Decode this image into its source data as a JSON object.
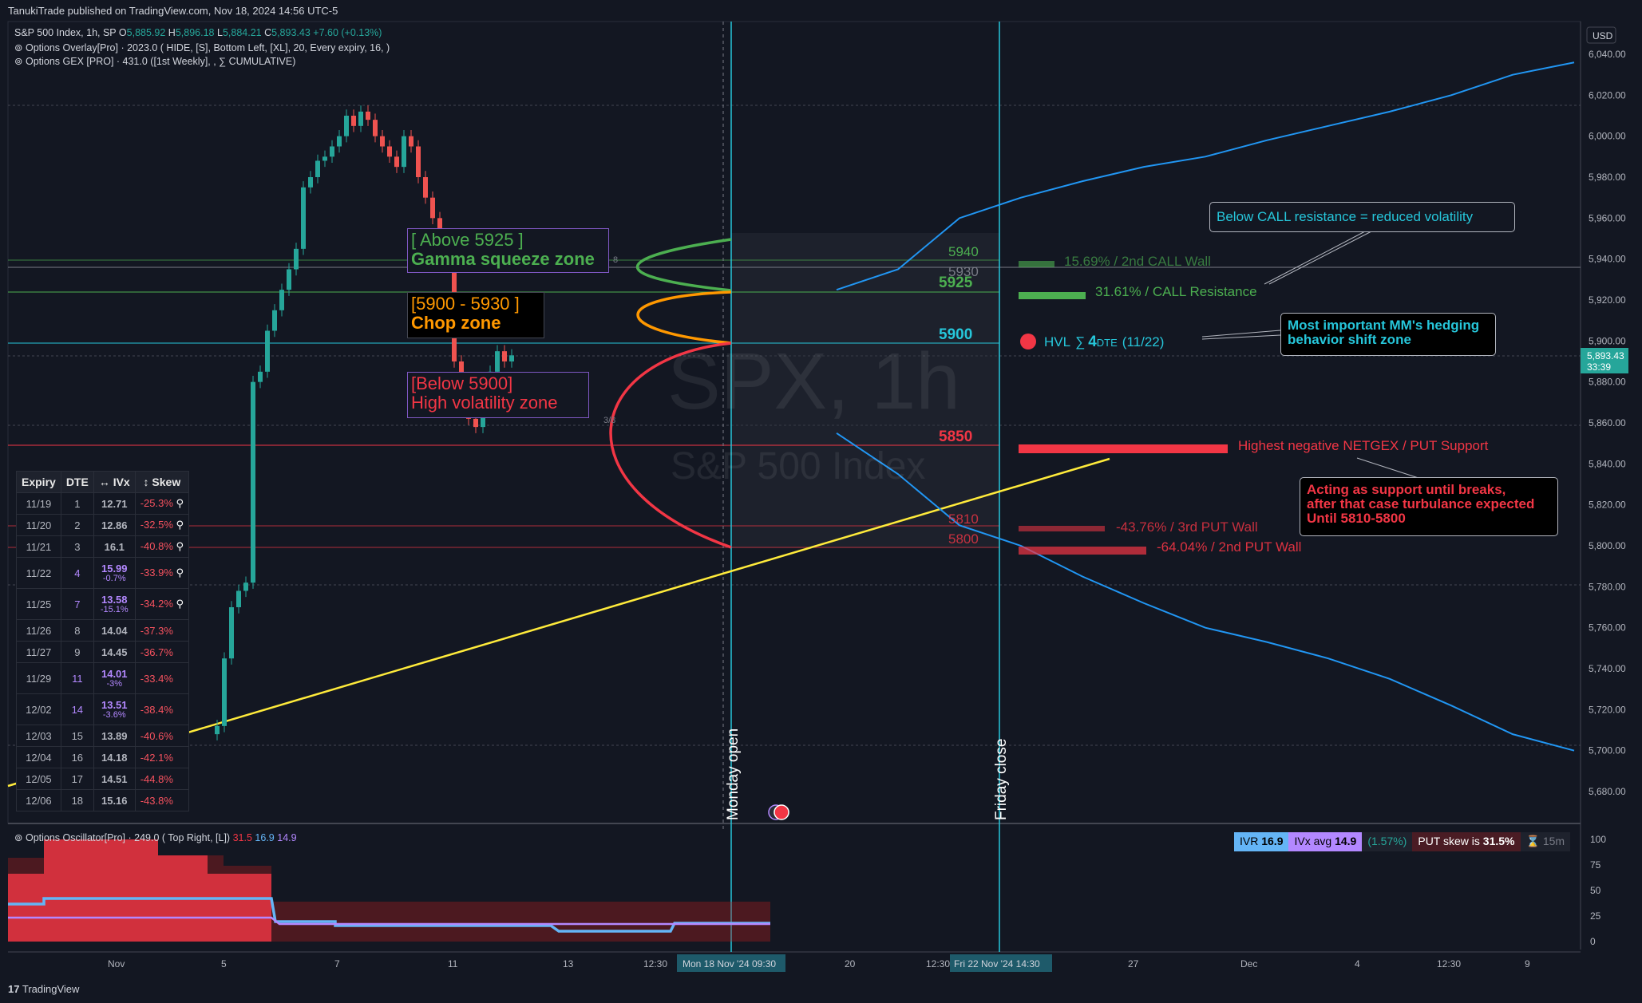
{
  "header": {
    "published": "TanukiTrade published on TradingView.com, Nov 18, 2024 14:56 UTC-5"
  },
  "symbol_line": {
    "name": "S&P 500 Index, 1h, SP",
    "o_label": "O",
    "o": "5,885.92",
    "h_label": "H",
    "h": "5,896.18",
    "l_label": "L",
    "l": "5,884.21",
    "c_label": "C",
    "c": "5,893.43",
    "chg": "+7.60 (+0.13%)"
  },
  "indicators": [
    "Options Overlay[Pro] · 2023.0 ( HIDE, [S], Bottom Left, [XL], 20, Every expiry, 16, )",
    "Options GEX [PRO] · 431.0 ([1st Weekly], , ∑ CUMULATIVE)"
  ],
  "oscillator_legend": {
    "name": "Options Oscillator[Pro] · 249.0 ( Top Right, [L])",
    "v1": "31.5",
    "v2": "16.9",
    "v3": "14.9"
  },
  "zones": {
    "above_title": "[ Above 5925 ]",
    "above_sub": "Gamma squeeze zone",
    "chop_title": "[5900 - 5930 ]",
    "chop_sub": "Chop zone",
    "below_title": "[Below 5900]",
    "below_sub": "High volatility zone"
  },
  "levels": {
    "l5940": "5940",
    "l5930": "5930",
    "l5925": "5925",
    "l5900": "5900",
    "l5850": "5850",
    "l5810": "5810",
    "l5800": "5800"
  },
  "gex_labels": {
    "call_wall_2": "15.69% / 2nd CALL Wall",
    "call_res": "31.61% / CALL Resistance",
    "hvl": "HVL",
    "hvl_dte": "4",
    "hvl_dte_unit": "DTE",
    "hvl_date": "(11/22)",
    "netgex": "Highest negative NETGEX / PUT Support",
    "put_wall_3": "-43.76% / 3rd PUT Wall",
    "put_wall_2": "-64.04% / 2nd PUT Wall"
  },
  "callouts": {
    "call_note": "Below CALL resistance = reduced volatility",
    "mm_note_1": "Most important MM's hedging",
    "mm_note_2": "behavior shift zone",
    "support_1": "Acting as support until breaks,",
    "support_2": "after that case turbulance expected",
    "support_3": "Until 5810-5800"
  },
  "watermark": {
    "symbol_a": "SPX",
    "symbol_b": ", 1h",
    "name": "S&P 500 Index"
  },
  "markers": {
    "monday": "Monday open",
    "friday": "Friday close",
    "small_8": "8",
    "small_38": "3/8"
  },
  "price_scale": {
    "currency": "USD",
    "ticks": [
      "6,040.00",
      "6,020.00",
      "6,000.00",
      "5,980.00",
      "5,960.00",
      "5,940.00",
      "5,920.00",
      "5,900.00",
      "5,880.00",
      "5,860.00",
      "5,840.00",
      "5,820.00",
      "5,800.00",
      "5,780.00",
      "5,760.00",
      "5,740.00",
      "5,720.00",
      "5,700.00",
      "5,680.00"
    ],
    "last_price": "5,893.43",
    "countdown": "33:39"
  },
  "osc_scale": [
    "100",
    "75",
    "50",
    "25",
    "0"
  ],
  "time_axis": {
    "labels": [
      "Nov",
      "5",
      "7",
      "11",
      "13",
      "12:30",
      "20",
      "12:30",
      "27",
      "Dec",
      "4",
      "12:30",
      "9"
    ],
    "cursor_1": "Mon 18 Nov '24   09:30",
    "cursor_2": "Fri 22 Nov '24   14:30"
  },
  "iv_table": {
    "headers": [
      "Expiry",
      "DTE",
      "↔ IVx",
      "↕ Skew"
    ],
    "rows": [
      {
        "expiry": "11/19",
        "dte": "1",
        "ivx": "12.71",
        "chg": "",
        "skew": "-25.3%"
      },
      {
        "expiry": "11/20",
        "dte": "2",
        "ivx": "12.86",
        "chg": "",
        "skew": "-32.5%"
      },
      {
        "expiry": "11/21",
        "dte": "3",
        "ivx": "16.1",
        "chg": "",
        "skew": "-40.8%"
      },
      {
        "expiry": "11/22",
        "dte": "4",
        "ivx": "15.99",
        "chg": "-0.7%",
        "skew": "-33.9%"
      },
      {
        "expiry": "11/25",
        "dte": "7",
        "ivx": "13.58",
        "chg": "-15.1%",
        "skew": "-34.2%"
      },
      {
        "expiry": "11/26",
        "dte": "8",
        "ivx": "14.04",
        "chg": "",
        "skew": "-37.3%"
      },
      {
        "expiry": "11/27",
        "dte": "9",
        "ivx": "14.45",
        "chg": "",
        "skew": "-36.7%"
      },
      {
        "expiry": "11/29",
        "dte": "11",
        "ivx": "14.01",
        "chg": "-3%",
        "skew": "-33.4%"
      },
      {
        "expiry": "12/02",
        "dte": "14",
        "ivx": "13.51",
        "chg": "-3.6%",
        "skew": "-38.4%"
      },
      {
        "expiry": "12/03",
        "dte": "15",
        "ivx": "13.89",
        "chg": "",
        "skew": "-40.6%"
      },
      {
        "expiry": "12/04",
        "dte": "16",
        "ivx": "14.18",
        "chg": "",
        "skew": "-42.1%"
      },
      {
        "expiry": "12/05",
        "dte": "17",
        "ivx": "14.51",
        "chg": "",
        "skew": "-44.8%"
      },
      {
        "expiry": "12/06",
        "dte": "18",
        "ivx": "15.16",
        "chg": "",
        "skew": "-43.8%"
      }
    ]
  },
  "iv_bar": {
    "ivr_label": "IVR",
    "ivr": "16.9",
    "ivx_avg_label": "IVx avg",
    "ivx_avg": "14.9",
    "chg": "(1.57%)",
    "skew_label": "PUT skew is",
    "skew": "31.5%",
    "tf": "15m"
  },
  "footer": {
    "brand": "TradingView"
  },
  "colors": {
    "up": "#26a69a",
    "down": "#ef5350",
    "call": "#4caf50",
    "put": "#f23645",
    "hvl": "#26c6da",
    "trend": "#ffeb3b",
    "range": "#2196f3"
  },
  "chart_data": {
    "type": "candlestick",
    "timeframe": "1h",
    "ylim": [
      5670,
      6050
    ],
    "candles_approx_close": [
      5712,
      5745,
      5770,
      5778,
      5782,
      5880,
      5885,
      5905,
      5915,
      5925,
      5935,
      5945,
      5975,
      5980,
      5988,
      5990,
      5995,
      6000,
      6010,
      6005,
      6012,
      6008,
      6000,
      5995,
      5990,
      5985,
      6000,
      5995,
      5980,
      5970,
      5960,
      5950,
      5940,
      5890,
      5880,
      5862,
      5858,
      5870,
      5885,
      5895,
      5890,
      5893
    ],
    "range_upper": [
      5925,
      5935,
      5960,
      5970,
      5978,
      5985,
      5990,
      5998,
      6005,
      6012,
      6020,
      6030,
      6036
    ],
    "range_lower": [
      5855,
      5835,
      5810,
      5800,
      5785,
      5772,
      5760,
      5753,
      5745,
      5735,
      5722,
      5708,
      5700
    ],
    "levels": [
      5940,
      5930,
      5925,
      5900,
      5850,
      5810,
      5800
    ]
  }
}
